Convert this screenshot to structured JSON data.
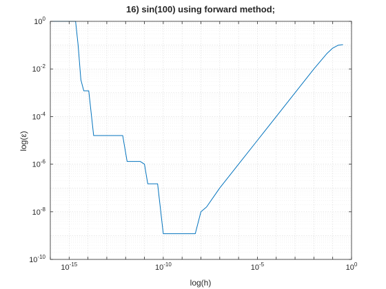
{
  "chart_data": {
    "type": "line",
    "title": "16) sin(100) using forward method;",
    "xlabel": "log(h)",
    "ylabel": "log(ε)",
    "x_scale": "log",
    "y_scale": "log",
    "xlim": [
      1e-16,
      1
    ],
    "ylim": [
      1e-10,
      1
    ],
    "grid": true,
    "minor_grid": true,
    "x_ticks": [
      {
        "value": 1e-15,
        "base": "10",
        "exp": "-15"
      },
      {
        "value": 1e-10,
        "base": "10",
        "exp": "-10"
      },
      {
        "value": 1e-05,
        "base": "10",
        "exp": "-5"
      },
      {
        "value": 1,
        "base": "10",
        "exp": "0"
      }
    ],
    "y_ticks": [
      {
        "value": 1e-10,
        "base": "10",
        "exp": "-10"
      },
      {
        "value": 1e-08,
        "base": "10",
        "exp": "-8"
      },
      {
        "value": 1e-06,
        "base": "10",
        "exp": "-6"
      },
      {
        "value": 0.0001,
        "base": "10",
        "exp": "-4"
      },
      {
        "value": 0.01,
        "base": "10",
        "exp": "-2"
      },
      {
        "value": 1,
        "base": "10",
        "exp": "0"
      }
    ],
    "series": [
      {
        "color": "#0072bd",
        "points": [
          [
            1e-16,
            1.0
          ],
          [
            2e-16,
            1.0
          ],
          [
            3e-16,
            1.0
          ],
          [
            4e-16,
            1.0
          ],
          [
            6e-16,
            1.0
          ],
          [
            8e-16,
            1.0
          ],
          [
            1.1e-15,
            1.0
          ],
          [
            1.6e-15,
            1.0
          ],
          [
            2.2e-15,
            1.0
          ],
          [
            3e-15,
            0.1
          ],
          [
            4.2e-15,
            0.0035
          ],
          [
            6e-15,
            0.0012
          ],
          [
            8e-15,
            0.0012
          ],
          [
            1.1e-14,
            0.0012
          ],
          [
            2e-14,
            1.6e-05
          ],
          [
            5e-14,
            1.6e-05
          ],
          [
            1e-13,
            1.6e-05
          ],
          [
            2e-13,
            1.6e-05
          ],
          [
            5e-13,
            1.6e-05
          ],
          [
            7e-13,
            1.6e-05
          ],
          [
            1.2e-12,
            1.3e-06
          ],
          [
            3e-12,
            1.3e-06
          ],
          [
            6e-12,
            1.3e-06
          ],
          [
            1e-11,
            1e-06
          ],
          [
            1.5e-11,
            1.5e-07
          ],
          [
            3e-11,
            1.5e-07
          ],
          [
            5e-11,
            1.5e-07
          ],
          [
            1e-10,
            1.2e-09
          ],
          [
            3e-10,
            1.2e-09
          ],
          [
            1e-09,
            1.2e-09
          ],
          [
            3e-09,
            1.2e-09
          ],
          [
            5e-09,
            1.2e-09
          ],
          [
            1e-08,
            1e-08
          ],
          [
            2e-08,
            1.6e-08
          ],
          [
            1e-07,
            1e-07
          ],
          [
            1e-06,
            1e-06
          ],
          [
            1e-05,
            1e-05
          ],
          [
            0.0001,
            0.0001
          ],
          [
            0.001,
            0.001
          ],
          [
            0.01,
            0.01
          ],
          [
            0.05,
            0.045
          ],
          [
            0.1,
            0.075
          ],
          [
            0.2,
            0.1
          ],
          [
            0.35,
            0.105
          ]
        ]
      }
    ]
  }
}
